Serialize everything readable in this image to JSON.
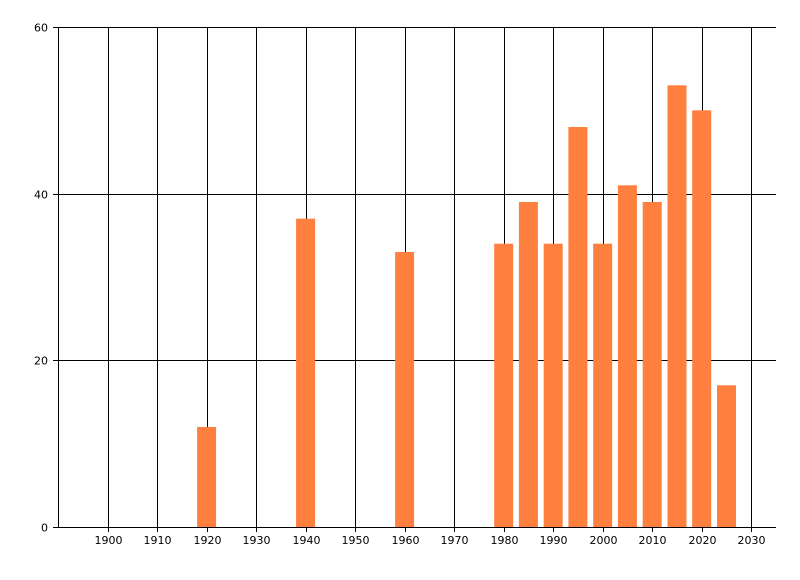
{
  "chart_data": {
    "type": "bar",
    "x": [
      1920,
      1940,
      1960,
      1980,
      1985,
      1990,
      1995,
      2000,
      2005,
      2010,
      2015,
      2020,
      2025
    ],
    "values": [
      12,
      37,
      33,
      34,
      39,
      34,
      48,
      34,
      41,
      39,
      53,
      50,
      17
    ],
    "xlim": [
      1890,
      2035
    ],
    "ylim": [
      0,
      60
    ],
    "x_ticks": [
      "1900",
      "1910",
      "1920",
      "1930",
      "1940",
      "1950",
      "1960",
      "1970",
      "1980",
      "1990",
      "2000",
      "2010",
      "2020",
      "2030"
    ],
    "y_ticks": [
      "0",
      "20",
      "40",
      "60"
    ],
    "grid": true,
    "bar_color": "#FF7F3F",
    "title": "",
    "xlabel": "",
    "ylabel": ""
  }
}
